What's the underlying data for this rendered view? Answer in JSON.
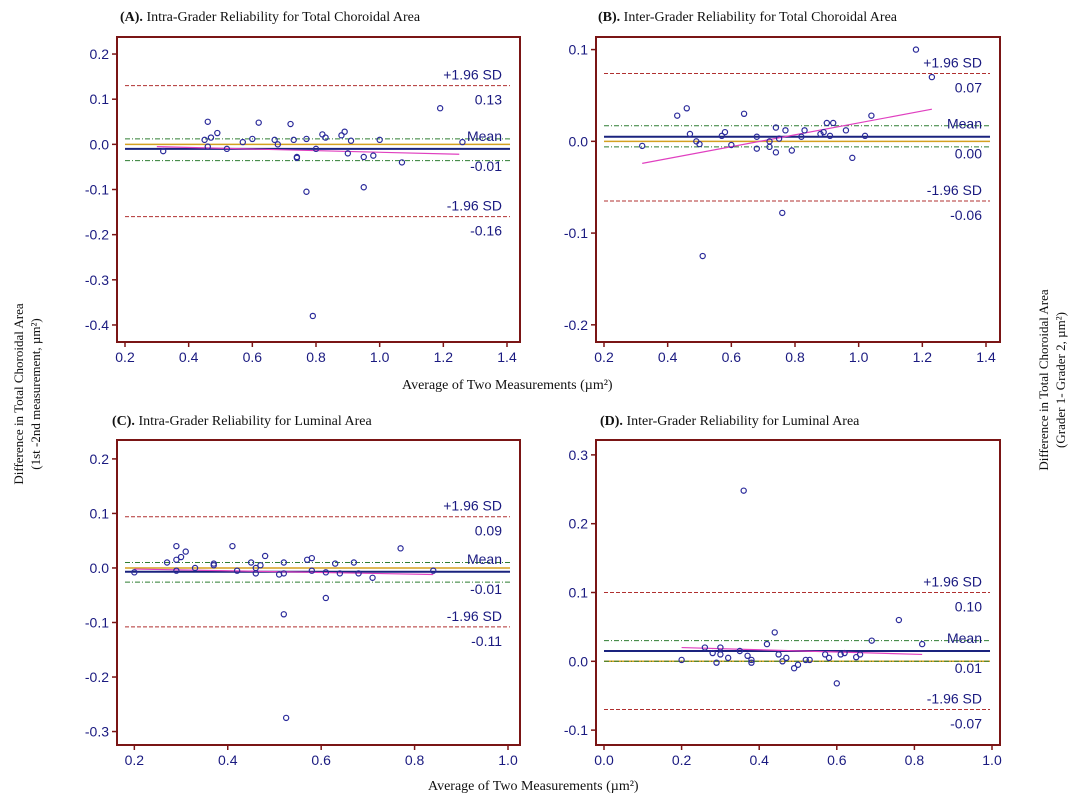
{
  "figure": {
    "xlabel_top": "Average of Two Measurements (µm²)",
    "xlabel_bottom": "Average of Two Measurements (µm²)",
    "ylabel_left": [
      "Difference in Total Choroidal Area",
      "(1st -2nd measurement, µm²)"
    ],
    "ylabel_right": [
      "Difference in Total Choroidal Area",
      "(Grader 1- Grader 2, µm²)"
    ]
  },
  "colors": {
    "frame": "#7a1515",
    "axis_text": "#1a1a80",
    "points": "#2a2a9a",
    "mean_line": "#1a237e",
    "sd_line": "#b03030",
    "ci_line": "#2e7d32",
    "zero_line": "#d4a020",
    "regression": "#e040c0"
  },
  "chart_data": [
    {
      "type": "scatter",
      "panel_label": "(A).",
      "title": "Intra-Grader Reliability for Total Choroidal Area",
      "xlim": [
        0.2,
        1.4
      ],
      "ylim": [
        -0.42,
        0.22
      ],
      "x_ticks": [
        0.2,
        0.4,
        0.6,
        0.8,
        1.0,
        1.2,
        1.4
      ],
      "y_ticks": [
        -0.4,
        -0.3,
        -0.2,
        -0.1,
        0.0,
        0.1,
        0.2
      ],
      "x_tick_labels": [
        "0.2",
        "0.4",
        "0.6",
        "0.8",
        "1.0",
        "1.2",
        "1.4"
      ],
      "y_tick_labels": [
        "-0.4",
        "-0.3",
        "-0.2",
        "-0.1",
        "0.0",
        "0.1",
        "0.2"
      ],
      "upper_loa": 0.13,
      "mean": -0.01,
      "lower_loa": -0.16,
      "mean_ci": [
        -0.036,
        0.012
      ],
      "upper_label": "+1.96 SD",
      "upper_value": "0.13",
      "mean_label": "Mean",
      "mean_value": "-0.01",
      "lower_label": "-1.96 SD",
      "lower_value": "-0.16",
      "regression": [
        [
          0.3,
          -0.005
        ],
        [
          1.25,
          -0.022
        ]
      ],
      "points": [
        [
          0.32,
          -0.015
        ],
        [
          0.45,
          0.01
        ],
        [
          0.46,
          0.05
        ],
        [
          0.46,
          -0.005
        ],
        [
          0.47,
          0.015
        ],
        [
          0.49,
          0.025
        ],
        [
          0.52,
          -0.01
        ],
        [
          0.57,
          0.005
        ],
        [
          0.6,
          0.012
        ],
        [
          0.62,
          0.048
        ],
        [
          0.67,
          0.01
        ],
        [
          0.68,
          0.0
        ],
        [
          0.72,
          0.045
        ],
        [
          0.73,
          0.01
        ],
        [
          0.74,
          -0.03
        ],
        [
          0.74,
          -0.028
        ],
        [
          0.77,
          0.012
        ],
        [
          0.77,
          -0.105
        ],
        [
          0.79,
          -0.38
        ],
        [
          0.8,
          -0.01
        ],
        [
          0.82,
          0.022
        ],
        [
          0.83,
          0.015
        ],
        [
          0.88,
          0.02
        ],
        [
          0.89,
          0.028
        ],
        [
          0.9,
          -0.02
        ],
        [
          0.91,
          0.008
        ],
        [
          0.95,
          -0.028
        ],
        [
          0.95,
          -0.095
        ],
        [
          0.98,
          -0.025
        ],
        [
          1.0,
          0.01
        ],
        [
          1.07,
          -0.04
        ],
        [
          1.19,
          0.08
        ],
        [
          1.26,
          0.005
        ]
      ]
    },
    {
      "type": "scatter",
      "panel_label": "(B).",
      "title": "Inter-Grader Reliability for Total Choroidal Area",
      "xlim": [
        0.2,
        1.4
      ],
      "ylim": [
        -0.21,
        0.105
      ],
      "x_ticks": [
        0.2,
        0.4,
        0.6,
        0.8,
        1.0,
        1.2,
        1.4
      ],
      "y_ticks": [
        -0.2,
        -0.1,
        0.0,
        0.1
      ],
      "x_tick_labels": [
        "0.2",
        "0.4",
        "0.6",
        "0.8",
        "1.0",
        "1.2",
        "1.4"
      ],
      "y_tick_labels": [
        "-0.2",
        "-0.1",
        "0.0",
        "0.1"
      ],
      "upper_loa": 0.074,
      "mean": 0.005,
      "lower_loa": -0.065,
      "mean_ci": [
        -0.006,
        0.017
      ],
      "upper_label": "+1.96 SD",
      "upper_value": "0.07",
      "mean_label": "Mean",
      "mean_value": "0.00",
      "lower_label": "-1.96 SD",
      "lower_value": "-0.06",
      "regression": [
        [
          0.32,
          -0.024
        ],
        [
          1.23,
          0.035
        ]
      ],
      "points": [
        [
          0.32,
          -0.005
        ],
        [
          0.43,
          0.028
        ],
        [
          0.46,
          0.036
        ],
        [
          0.47,
          0.008
        ],
        [
          0.49,
          0.0
        ],
        [
          0.5,
          -0.003
        ],
        [
          0.51,
          -0.125
        ],
        [
          0.57,
          0.006
        ],
        [
          0.58,
          0.01
        ],
        [
          0.6,
          -0.004
        ],
        [
          0.64,
          0.03
        ],
        [
          0.68,
          0.005
        ],
        [
          0.68,
          -0.008
        ],
        [
          0.72,
          0.0
        ],
        [
          0.72,
          -0.006
        ],
        [
          0.74,
          -0.012
        ],
        [
          0.74,
          0.015
        ],
        [
          0.75,
          0.003
        ],
        [
          0.76,
          -0.078
        ],
        [
          0.77,
          0.012
        ],
        [
          0.79,
          -0.01
        ],
        [
          0.82,
          0.005
        ],
        [
          0.83,
          0.012
        ],
        [
          0.88,
          0.008
        ],
        [
          0.89,
          0.01
        ],
        [
          0.9,
          0.02
        ],
        [
          0.91,
          0.006
        ],
        [
          0.92,
          0.02
        ],
        [
          0.96,
          0.012
        ],
        [
          0.98,
          -0.018
        ],
        [
          1.02,
          0.006
        ],
        [
          1.04,
          0.028
        ],
        [
          1.18,
          0.1
        ],
        [
          1.23,
          0.07
        ]
      ]
    },
    {
      "type": "scatter",
      "panel_label": "(C).",
      "title": "Intra-Grader Reliability for Luminal Area",
      "xlim": [
        0.18,
        1.0
      ],
      "ylim": [
        -0.31,
        0.22
      ],
      "x_ticks": [
        0.2,
        0.4,
        0.6,
        0.8,
        1.0
      ],
      "y_ticks": [
        -0.3,
        -0.2,
        -0.1,
        0.0,
        0.1,
        0.2
      ],
      "x_tick_labels": [
        "0.2",
        "0.4",
        "0.6",
        "0.8",
        "1.0"
      ],
      "y_tick_labels": [
        "-0.3",
        "-0.2",
        "-0.1",
        "0.0",
        "0.1",
        "0.2"
      ],
      "upper_loa": 0.094,
      "mean": -0.007,
      "lower_loa": -0.108,
      "mean_ci": [
        -0.026,
        0.01
      ],
      "upper_label": "+1.96 SD",
      "upper_value": "0.09",
      "mean_label": "Mean",
      "mean_value": "-0.01",
      "lower_label": "-1.96 SD",
      "lower_value": "-0.11",
      "regression": [
        [
          0.2,
          -0.002
        ],
        [
          0.84,
          -0.012
        ]
      ],
      "points": [
        [
          0.2,
          -0.008
        ],
        [
          0.27,
          0.01
        ],
        [
          0.29,
          0.04
        ],
        [
          0.29,
          0.015
        ],
        [
          0.29,
          -0.005
        ],
        [
          0.3,
          0.02
        ],
        [
          0.31,
          0.03
        ],
        [
          0.33,
          0.0
        ],
        [
          0.37,
          0.005
        ],
        [
          0.37,
          0.008
        ],
        [
          0.41,
          0.04
        ],
        [
          0.42,
          -0.005
        ],
        [
          0.45,
          0.01
        ],
        [
          0.46,
          0.0
        ],
        [
          0.46,
          -0.01
        ],
        [
          0.47,
          0.005
        ],
        [
          0.48,
          0.022
        ],
        [
          0.51,
          -0.012
        ],
        [
          0.52,
          0.01
        ],
        [
          0.52,
          -0.01
        ],
        [
          0.52,
          -0.085
        ],
        [
          0.525,
          -0.275
        ],
        [
          0.57,
          0.015
        ],
        [
          0.58,
          0.018
        ],
        [
          0.58,
          -0.005
        ],
        [
          0.61,
          -0.008
        ],
        [
          0.61,
          -0.055
        ],
        [
          0.63,
          0.008
        ],
        [
          0.64,
          -0.01
        ],
        [
          0.67,
          0.01
        ],
        [
          0.68,
          -0.01
        ],
        [
          0.71,
          -0.018
        ],
        [
          0.77,
          0.036
        ],
        [
          0.84,
          -0.005
        ]
      ]
    },
    {
      "type": "scatter",
      "panel_label": "(D).",
      "title": "Inter-Grader Reliability for Luminal Area",
      "xlim": [
        0.0,
        1.0
      ],
      "ylim": [
        -0.11,
        0.31
      ],
      "x_ticks": [
        0.0,
        0.2,
        0.4,
        0.6,
        0.8,
        1.0
      ],
      "y_ticks": [
        -0.1,
        0.0,
        0.1,
        0.2,
        0.3
      ],
      "x_tick_labels": [
        "0.0",
        "0.2",
        "0.4",
        "0.6",
        "0.8",
        "1.0"
      ],
      "y_tick_labels": [
        "-0.1",
        "0.0",
        "0.1",
        "0.2",
        "0.3"
      ],
      "upper_loa": 0.1,
      "mean": 0.015,
      "lower_loa": -0.07,
      "mean_ci": [
        0.0,
        0.03
      ],
      "upper_label": "+1.96 SD",
      "upper_value": "0.10",
      "mean_label": "Mean",
      "mean_value": "0.01",
      "lower_label": "-1.96 SD",
      "lower_value": "-0.07",
      "regression": [
        [
          0.2,
          0.02
        ],
        [
          0.82,
          0.01
        ]
      ],
      "points": [
        [
          0.2,
          0.002
        ],
        [
          0.26,
          0.02
        ],
        [
          0.28,
          0.012
        ],
        [
          0.29,
          -0.002
        ],
        [
          0.3,
          0.01
        ],
        [
          0.3,
          0.02
        ],
        [
          0.32,
          0.005
        ],
        [
          0.35,
          0.015
        ],
        [
          0.36,
          0.248
        ],
        [
          0.37,
          0.008
        ],
        [
          0.38,
          0.002
        ],
        [
          0.38,
          -0.002
        ],
        [
          0.42,
          0.025
        ],
        [
          0.44,
          0.042
        ],
        [
          0.45,
          0.01
        ],
        [
          0.46,
          0.0
        ],
        [
          0.47,
          0.005
        ],
        [
          0.49,
          -0.01
        ],
        [
          0.5,
          -0.005
        ],
        [
          0.52,
          0.002
        ],
        [
          0.53,
          0.002
        ],
        [
          0.57,
          0.01
        ],
        [
          0.58,
          0.005
        ],
        [
          0.6,
          -0.032
        ],
        [
          0.61,
          0.01
        ],
        [
          0.62,
          0.012
        ],
        [
          0.65,
          0.006
        ],
        [
          0.66,
          0.01
        ],
        [
          0.69,
          0.03
        ],
        [
          0.76,
          0.06
        ],
        [
          0.82,
          0.025
        ]
      ]
    }
  ]
}
